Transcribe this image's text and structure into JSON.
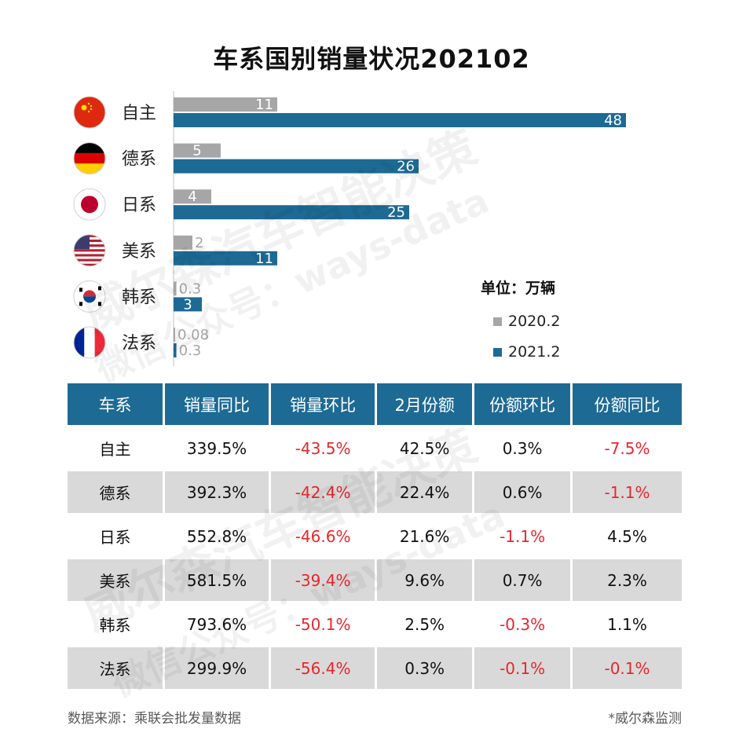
{
  "chart_data": {
    "type": "bar",
    "orientation": "horizontal",
    "title": "车系国别销量状况202102",
    "unit_label": "单位：万辆",
    "categories": [
      "自主",
      "德系",
      "日系",
      "美系",
      "韩系",
      "法系"
    ],
    "series": [
      {
        "name": "2020.2",
        "color": "#a6a6a6",
        "values": [
          11,
          5,
          4,
          2,
          0.3,
          0.08
        ]
      },
      {
        "name": "2021.2",
        "color": "#1d6a94",
        "values": [
          48,
          26,
          25,
          11,
          3,
          0.3
        ]
      }
    ],
    "value_labels": [
      [
        "11",
        "5",
        "4",
        "2",
        "0.3",
        "0.08"
      ],
      [
        "48",
        "26",
        "25",
        "11",
        "3",
        "0.3"
      ]
    ],
    "flags": [
      "china-flag-icon",
      "germany-flag-icon",
      "japan-flag-icon",
      "usa-flag-icon",
      "korea-flag-icon",
      "france-flag-icon"
    ],
    "legend_position": "right",
    "grid": false
  },
  "table": {
    "headers": [
      "车系",
      "销量同比",
      "销量环比",
      "2月份额",
      "份额环比",
      "份额同比"
    ],
    "rows": [
      [
        "自主",
        "339.5%",
        "-43.5%",
        "42.5%",
        "0.3%",
        "-7.5%"
      ],
      [
        "德系",
        "392.3%",
        "-42.4%",
        "22.4%",
        "0.6%",
        "-1.1%"
      ],
      [
        "日系",
        "552.8%",
        "-46.6%",
        "21.6%",
        "-1.1%",
        "4.5%"
      ],
      [
        "美系",
        "581.5%",
        "-39.4%",
        "9.6%",
        "0.7%",
        "2.3%"
      ],
      [
        "韩系",
        "793.6%",
        "-50.1%",
        "2.5%",
        "-0.3%",
        "1.1%"
      ],
      [
        "法系",
        "299.9%",
        "-56.4%",
        "0.3%",
        "-0.1%",
        "-0.1%"
      ]
    ]
  },
  "footer": {
    "source": "数据来源：乘联会批发量数据",
    "credit": "*威尔森监测"
  },
  "watermark": {
    "line1": "威尔森汽车智能决策",
    "line2": "微信公众号：ways-data"
  },
  "colors": {
    "header_bg": "#1d6a94",
    "negative": "#e8262b",
    "row_shade": "#d9d9d9"
  }
}
